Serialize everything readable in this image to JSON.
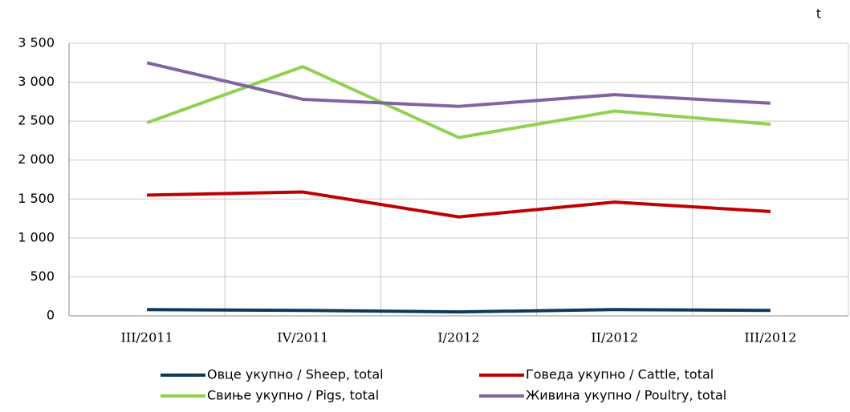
{
  "chart_data": {
    "type": "line",
    "unit": "t",
    "categories": [
      "III/2011",
      "IV/2011",
      "I/2012",
      "II/2012",
      "III/2012"
    ],
    "series": [
      {
        "name": "Овце укупно / Sheep, total",
        "color": "#0d3a5c",
        "values": [
          80,
          70,
          50,
          80,
          70
        ]
      },
      {
        "name": "Говеда укупно / Cattle, total",
        "color": "#c00000",
        "values": [
          1550,
          1590,
          1270,
          1460,
          1340
        ]
      },
      {
        "name": "Свиње укупно / Pigs, total",
        "color": "#92d050",
        "values": [
          2480,
          3200,
          2290,
          2630,
          2460
        ]
      },
      {
        "name": "Живина укупно / Poultry, total",
        "color": "#8064a2",
        "values": [
          3250,
          2780,
          2690,
          2840,
          2730
        ]
      }
    ],
    "ylim": [
      0,
      3500
    ],
    "yticks": [
      0,
      500,
      {
        "value": 1000,
        "label": "1 000"
      },
      {
        "value": 1500,
        "label": "1 500"
      },
      {
        "value": 2000,
        "label": "2 000"
      },
      {
        "value": 2500,
        "label": "2 500"
      },
      {
        "value": 3000,
        "label": "3 000"
      },
      {
        "value": 3500,
        "label": "3 500"
      }
    ],
    "grid": true
  }
}
